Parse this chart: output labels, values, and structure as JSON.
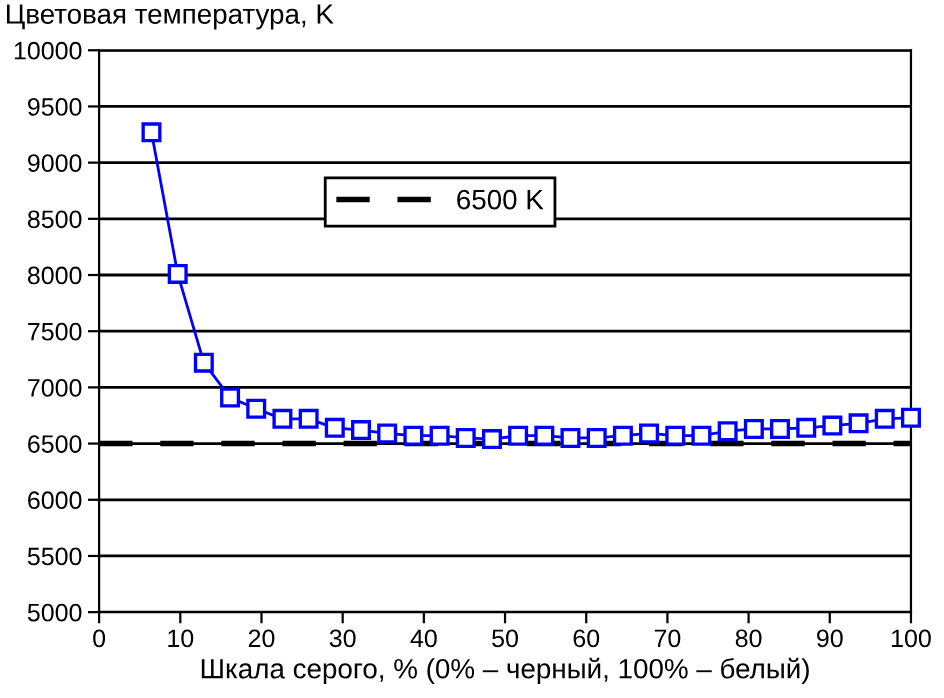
{
  "chart_data": {
    "type": "line",
    "ylabel": "Цветовая температура, K",
    "xlabel": "Шкала серого, % (0% – черный, 100% – белый)",
    "series": [
      {
        "color": "#0000ff",
        "marker": "square",
        "line_style": "solid",
        "x": [
          6.45,
          9.68,
          12.9,
          16.13,
          19.35,
          22.58,
          25.81,
          29.03,
          32.26,
          35.48,
          38.71,
          41.94,
          45.16,
          48.39,
          51.61,
          54.84,
          58.06,
          61.29,
          64.52,
          67.74,
          70.97,
          74.19,
          77.42,
          80.65,
          83.87,
          87.1,
          90.32,
          93.55,
          96.77,
          100
        ],
        "values": [
          9270,
          8010,
          7220,
          6910,
          6810,
          6720,
          6720,
          6640,
          6620,
          6590,
          6570,
          6570,
          6550,
          6540,
          6570,
          6570,
          6550,
          6550,
          6570,
          6590,
          6570,
          6570,
          6610,
          6630,
          6630,
          6640,
          6660,
          6680,
          6720,
          6730
        ]
      }
    ],
    "ref_lines": [
      {
        "axis": "y",
        "value": 6500,
        "label": "6500 K",
        "color": "#000000",
        "line_style": "dashed"
      }
    ],
    "xlim": [
      0,
      100
    ],
    "xticks": [
      0,
      10,
      20,
      30,
      40,
      50,
      60,
      70,
      80,
      90,
      100
    ],
    "ylim": [
      5000,
      10000
    ],
    "yticks": [
      5000,
      5500,
      6000,
      6500,
      7000,
      7500,
      8000,
      8500,
      9000,
      9500,
      10000
    ],
    "grid": "y",
    "legend": "top"
  }
}
